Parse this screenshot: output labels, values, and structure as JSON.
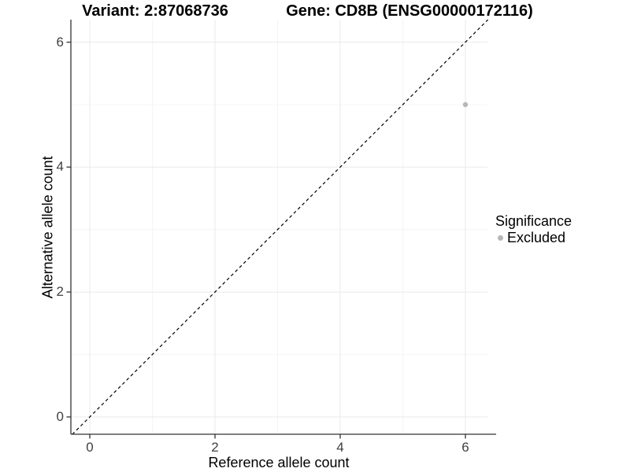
{
  "titles": {
    "left": "Variant: 2:87068736",
    "right": "Gene: CD8B (ENSG00000172116)"
  },
  "chart_data": {
    "type": "scatter",
    "title_left": "Variant: 2:87068736",
    "title_right": "Gene: CD8B (ENSG00000172116)",
    "xlabel": "Reference allele count",
    "ylabel": "Alternative allele count",
    "xlim": [
      -0.3,
      6.36
    ],
    "ylim": [
      -0.3,
      6.36
    ],
    "x_ticks": [
      0,
      2,
      4,
      6
    ],
    "y_ticks": [
      0,
      2,
      4,
      6
    ],
    "x_minor_ticks": [
      1,
      3,
      5
    ],
    "y_minor_ticks": [
      1,
      3,
      5
    ],
    "grid": true,
    "points": [
      {
        "x": 6,
        "y": 5,
        "series": "Excluded"
      }
    ],
    "identity_line": {
      "style": "dashed",
      "from": [
        -0.28,
        -0.28
      ],
      "to": [
        6.36,
        6.36
      ]
    },
    "legend": {
      "title": "Significance",
      "position": "right",
      "entries": [
        {
          "label": "Excluded",
          "color": "#b7b7b7",
          "marker": "circle"
        }
      ]
    }
  },
  "colors": {
    "point": "#b7b7b7",
    "axis_line": "#333333",
    "tick_mark": "#333333",
    "tick_text": "#404040",
    "grid_major": "#e9e9e9",
    "grid_minor": "#f4f4f4",
    "identity_line": "#000000",
    "background": "#ffffff"
  }
}
